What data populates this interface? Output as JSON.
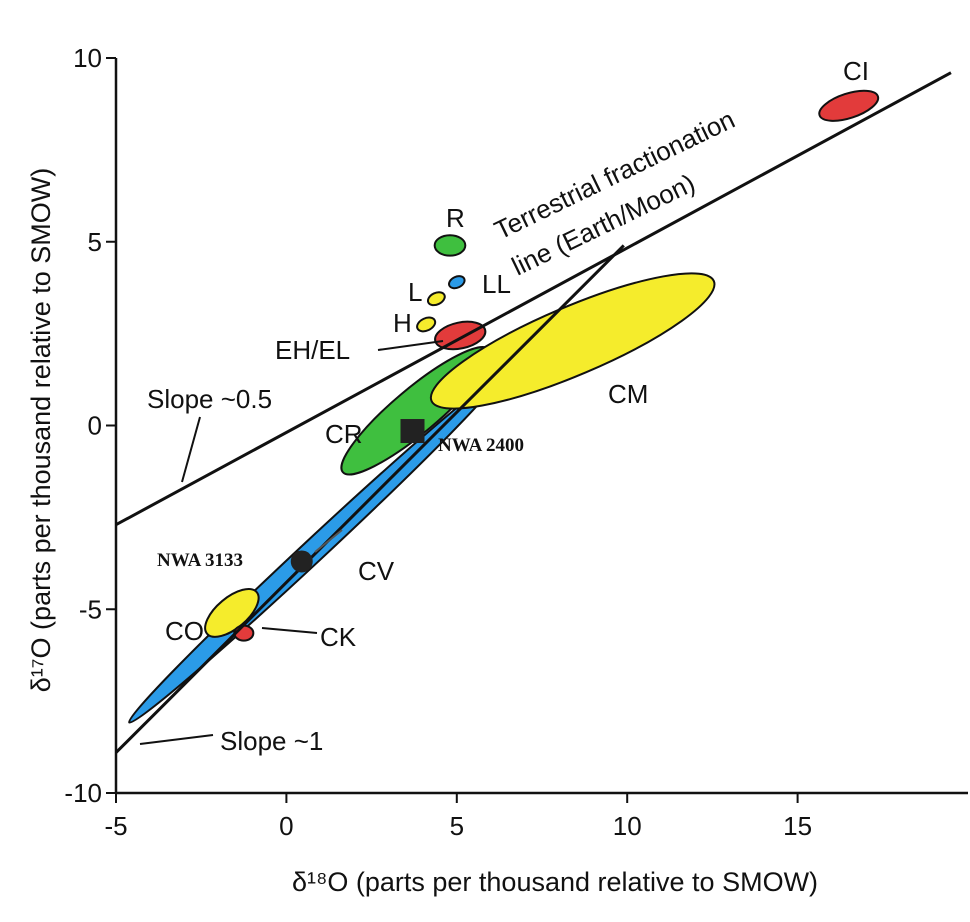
{
  "chart_data": {
    "type": "scatter",
    "title": "",
    "xlabel": "δ¹⁸O (parts per thousand relative to SMOW)",
    "ylabel": "δ¹⁷O (parts per thousand relative to SMOW)",
    "xlim": [
      -5,
      20
    ],
    "ylim": [
      -10,
      10
    ],
    "x_ticks": [
      -5,
      0,
      5,
      10,
      15
    ],
    "y_ticks": [
      -10,
      -5,
      0,
      5,
      10
    ],
    "grid": false,
    "colors": {
      "red": "#e23b3b",
      "yellow": "#f5ec2c",
      "green": "#3fbf3f",
      "blue": "#2b9be8",
      "line": "#111111"
    },
    "lines": [
      {
        "label_lines": [
          "Terrestrial fractionation",
          "line (Earth/Moon)"
        ],
        "slope_label": "Slope ~0.5",
        "points": [
          [
            -5,
            -2.7
          ],
          [
            19.5,
            9.6
          ]
        ]
      },
      {
        "slope_label": "Slope ~1",
        "points": [
          [
            -5,
            -8.9
          ],
          [
            9.9,
            4.9
          ]
        ]
      }
    ],
    "regions": [
      {
        "name": "CV",
        "color": "blue",
        "center": [
          0.8,
          -3.4
        ],
        "semi_major": 7.4,
        "semi_minor": 0.33,
        "angle": 43
      },
      {
        "name": "CR",
        "color": "green",
        "center": [
          3.8,
          0.4
        ],
        "semi_major": 2.8,
        "semi_minor": 0.65,
        "angle": 40
      },
      {
        "name": "CM",
        "color": "yellow",
        "center": [
          8.4,
          2.3
        ],
        "semi_major": 4.5,
        "semi_minor": 1.0,
        "angle": 23
      },
      {
        "name": "CO",
        "color": "yellow",
        "center": [
          -1.6,
          -5.1
        ],
        "semi_major": 0.95,
        "semi_minor": 0.45,
        "angle": 40
      },
      {
        "name": "CK",
        "color": "red",
        "center": [
          -1.25,
          -5.65
        ],
        "semi_major": 0.28,
        "semi_minor": 0.22,
        "angle": 0
      },
      {
        "name": "EH/EL",
        "color": "red",
        "center": [
          5.1,
          2.45
        ],
        "semi_major": 0.75,
        "semi_minor": 0.38,
        "angle": 12
      },
      {
        "name": "H",
        "color": "yellow",
        "center": [
          4.1,
          2.75
        ],
        "semi_major": 0.28,
        "semi_minor": 0.18,
        "angle": 25
      },
      {
        "name": "L",
        "color": "yellow",
        "center": [
          4.4,
          3.45
        ],
        "semi_major": 0.26,
        "semi_minor": 0.17,
        "angle": 25
      },
      {
        "name": "LL",
        "color": "blue",
        "center": [
          5.0,
          3.9
        ],
        "semi_major": 0.24,
        "semi_minor": 0.16,
        "angle": 25
      },
      {
        "name": "R",
        "color": "green",
        "center": [
          4.8,
          4.9
        ],
        "semi_major": 0.45,
        "semi_minor": 0.3,
        "angle": 0
      },
      {
        "name": "CI",
        "color": "red",
        "center": [
          16.5,
          8.7
        ],
        "semi_major": 0.9,
        "semi_minor": 0.36,
        "angle": 18
      }
    ],
    "samples": [
      {
        "name": "NWA 2400",
        "marker": "square",
        "x": 3.7,
        "y": -0.15
      },
      {
        "name": "NWA 3133",
        "marker": "circle",
        "x": 0.45,
        "y": -3.7
      }
    ]
  }
}
